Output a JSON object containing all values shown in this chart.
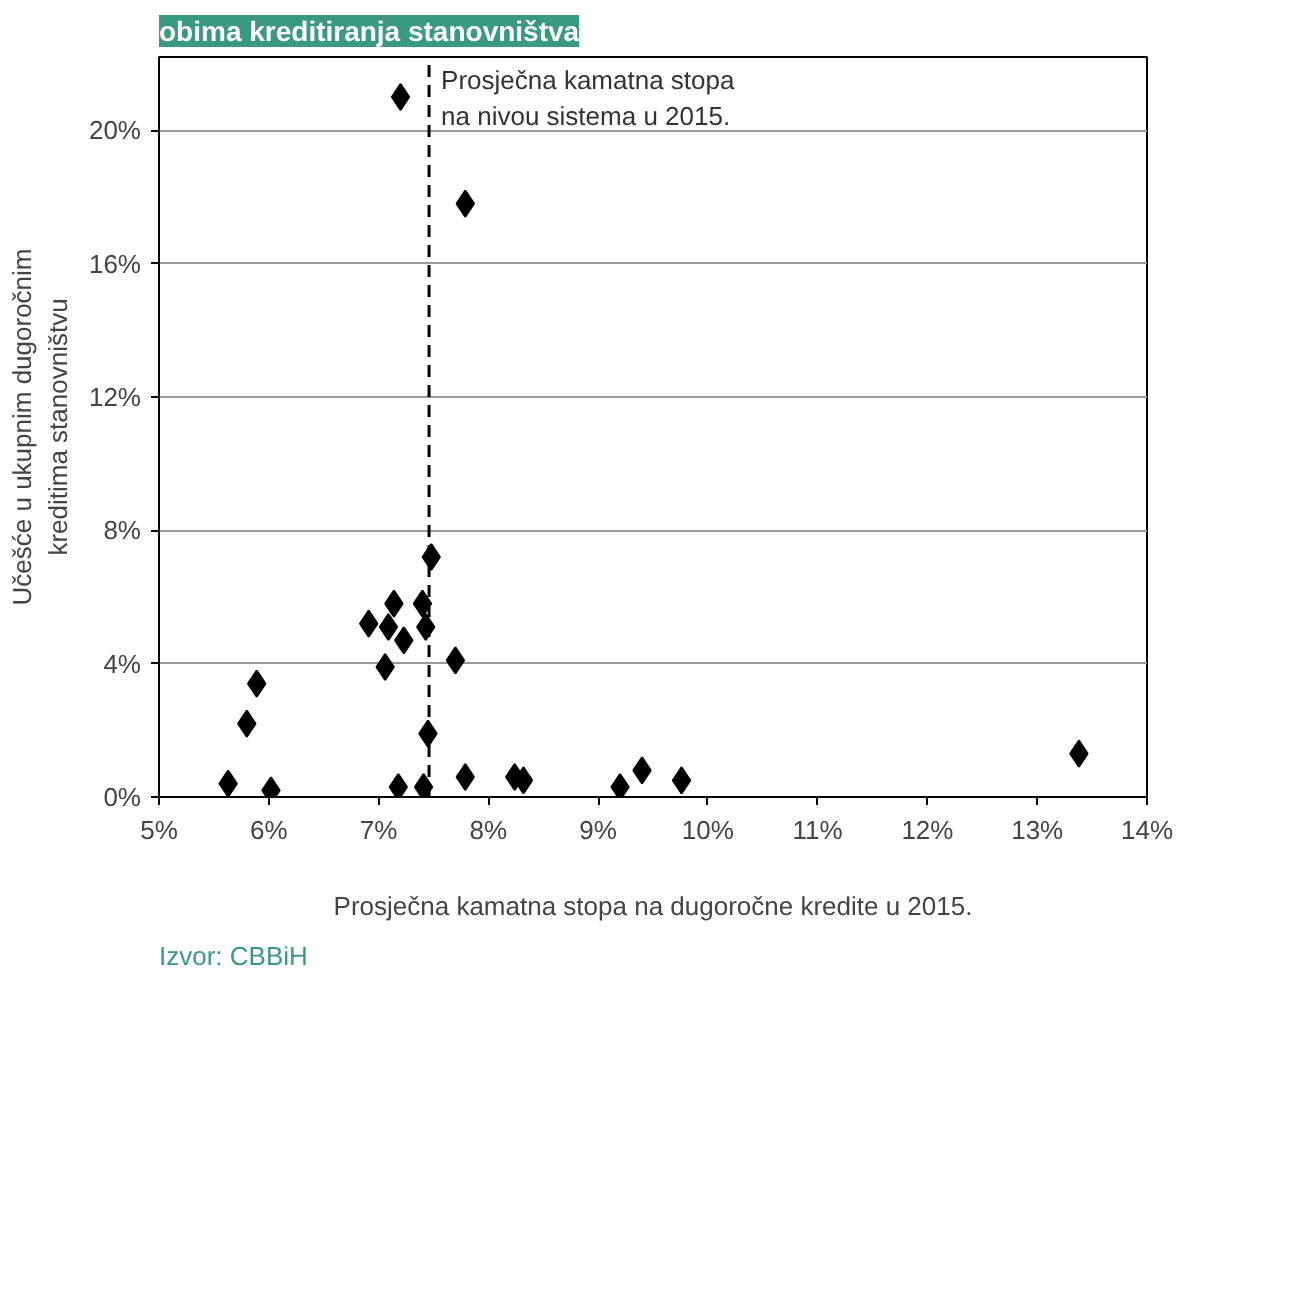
{
  "chart_data": {
    "type": "scatter",
    "title": "obima kreditiranja stanovništva",
    "xlabel": "Prosječna kamatna stopa na dugoročne kredite u 2015.",
    "ylabel": "Učešće u ukupnim dugoročnim\nkreditima stanovništvu",
    "x": [
      7.2,
      7.79,
      7.48,
      7.14,
      7.4,
      6.91,
      7.09,
      7.43,
      7.23,
      7.06,
      7.7,
      5.89,
      5.8,
      7.45,
      5.63,
      6.02,
      7.18,
      7.41,
      7.79,
      8.24,
      8.32,
      9.2,
      9.4,
      9.76,
      13.38
    ],
    "series": [
      {
        "color": "#000000",
        "values": [
          21.0,
          17.8,
          7.2,
          5.8,
          5.8,
          5.2,
          5.1,
          5.1,
          4.7,
          3.9,
          4.1,
          3.4,
          2.2,
          1.9,
          0.4,
          0.2,
          0.3,
          0.3,
          0.6,
          0.6,
          0.5,
          0.3,
          0.8,
          0.5,
          1.3
        ]
      }
    ],
    "marker": "diamond",
    "xlim": [
      5,
      14
    ],
    "ylim": [
      0,
      22.2
    ],
    "xticks": [
      {
        "value": 5,
        "label": "5%"
      },
      {
        "value": 6,
        "label": "6%"
      },
      {
        "value": 7,
        "label": "7%"
      },
      {
        "value": 8,
        "label": "8%"
      },
      {
        "value": 9,
        "label": "9%"
      },
      {
        "value": 10,
        "label": "10%"
      },
      {
        "value": 11,
        "label": "11%"
      },
      {
        "value": 12,
        "label": "12%"
      },
      {
        "value": 13,
        "label": "13%"
      },
      {
        "value": 14,
        "label": "14%"
      }
    ],
    "yticks": [
      {
        "value": 0,
        "label": "0%"
      },
      {
        "value": 4,
        "label": "4%"
      },
      {
        "value": 8,
        "label": "8%"
      },
      {
        "value": 12,
        "label": "12%"
      },
      {
        "value": 16,
        "label": "16%"
      },
      {
        "value": 20,
        "label": "20%"
      }
    ],
    "grid": "y",
    "ref_lines": [
      {
        "axis": "x",
        "value": 7.46,
        "label": "Prosječna kamatna stopa\nna nivou sistema u 2015.",
        "color": "#000000",
        "line_style": "dashed"
      }
    ],
    "annotations": [
      "Izvor: CBBiH"
    ]
  }
}
